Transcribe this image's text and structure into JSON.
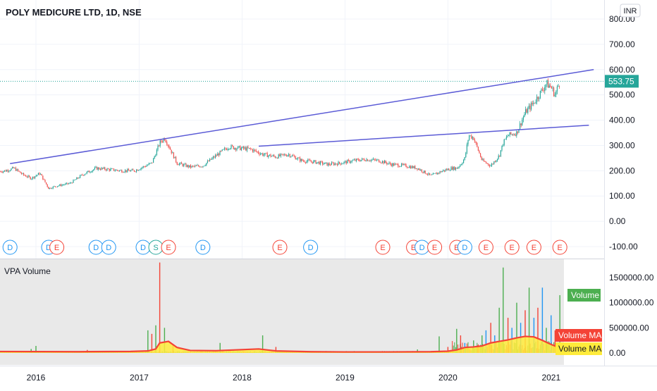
{
  "header": {
    "symbol_title": "POLY MEDICURE LTD, 1D, NSE",
    "currency_button": "INR"
  },
  "indicator": {
    "title": "VPA Volume",
    "volume_tag": "Volume",
    "volume_ma_tag": "Volume MA",
    "volume_ma_tag2": "Volume MA"
  },
  "price_tag": "553.75",
  "colors": {
    "up": "#26a69a",
    "down": "#ef5350",
    "trendline": "#5b5bd6",
    "last_price_line": "#26a69a",
    "volume_green": "#4caf50",
    "volume_red": "#f44336",
    "volume_blue": "#2196f3",
    "volume_ma": "#f44336",
    "volume_ma_fill": "#ffeb3b",
    "dividend": "#2196f3",
    "earnings": "#f44336",
    "split": "#26a69a",
    "pane_bg": "#e9e9e9"
  },
  "chart_data": [
    {
      "type": "line",
      "name": "price",
      "title": "POLY MEDICURE LTD, 1D, NSE",
      "y_axis_ticks": [
        "800.00",
        "700.00",
        "600.00",
        "500.00",
        "400.00",
        "300.00",
        "200.00",
        "100.00",
        "0.00",
        "-100.00"
      ],
      "y_range": [
        -100,
        800
      ],
      "x_axis_ticks": [
        "2016",
        "2017",
        "2018",
        "2019",
        "2020",
        "2021"
      ],
      "last_price": 553.75,
      "series": [
        {
          "x": [
            "2015-07-01",
            "2015-09-15",
            "2015-10-15",
            "2015-11-15",
            "2015-12-15",
            "2016-01-15",
            "2016-02-15",
            "2016-03-15",
            "2016-05-01",
            "2016-06-15",
            "2016-08-01",
            "2016-09-15",
            "2016-11-01",
            "2016-12-15",
            "2017-01-15",
            "2017-02-15",
            "2017-03-01",
            "2017-03-15",
            "2017-04-01",
            "2017-04-15",
            "2017-05-15",
            "2017-07-01",
            "2017-08-15",
            "2017-10-01",
            "2017-11-15",
            "2017-12-15",
            "2018-02-01",
            "2018-03-15",
            "2018-05-01",
            "2018-06-15",
            "2018-08-01",
            "2018-09-15",
            "2018-11-01",
            "2018-12-15",
            "2019-02-01",
            "2019-03-15",
            "2019-05-01",
            "2019-06-15",
            "2019-08-01",
            "2019-09-15",
            "2019-11-01",
            "2019-12-15",
            "2020-01-15",
            "2020-02-01",
            "2020-02-15",
            "2020-03-01",
            "2020-03-15",
            "2020-04-01",
            "2020-05-01",
            "2020-06-01",
            "2020-07-01",
            "2020-07-15",
            "2020-08-01",
            "2020-09-01",
            "2020-10-01",
            "2020-11-01",
            "2020-12-01",
            "2020-12-15",
            "2021-01-01",
            "2021-01-15",
            "2021-02-01"
          ],
          "y": [
            190,
            200,
            210,
            185,
            170,
            190,
            130,
            140,
            150,
            185,
            210,
            205,
            200,
            200,
            215,
            230,
            270,
            310,
            330,
            300,
            230,
            215,
            220,
            260,
            295,
            290,
            285,
            265,
            255,
            265,
            240,
            235,
            225,
            230,
            240,
            245,
            240,
            225,
            220,
            210,
            180,
            200,
            210,
            210,
            225,
            250,
            340,
            330,
            240,
            220,
            260,
            310,
            340,
            350,
            430,
            470,
            520,
            545,
            530,
            500,
            553.75
          ]
        }
      ],
      "trendlines": [
        {
          "from": {
            "x": "2015-10-01",
            "y": 228
          },
          "to": {
            "x": "2021-06-01",
            "y": 600
          }
        },
        {
          "from": {
            "x": "2018-03-01",
            "y": 297
          },
          "to": {
            "x": "2021-05-15",
            "y": 380
          }
        }
      ],
      "events": [
        {
          "label": "D",
          "kind": "dividend",
          "x": "2015-10-01"
        },
        {
          "label": "D",
          "kind": "dividend",
          "x": "2016-02-15"
        },
        {
          "label": "E",
          "kind": "earnings",
          "x": "2016-03-15"
        },
        {
          "label": "D",
          "kind": "dividend",
          "x": "2016-08-01"
        },
        {
          "label": "D",
          "kind": "dividend",
          "x": "2016-09-15"
        },
        {
          "label": "D",
          "kind": "dividend",
          "x": "2017-01-15"
        },
        {
          "label": "S",
          "kind": "split",
          "x": "2017-03-01"
        },
        {
          "label": "E",
          "kind": "earnings",
          "x": "2017-04-15"
        },
        {
          "label": "D",
          "kind": "dividend",
          "x": "2017-08-15"
        },
        {
          "label": "E",
          "kind": "earnings",
          "x": "2018-05-15"
        },
        {
          "label": "D",
          "kind": "dividend",
          "x": "2018-09-01"
        },
        {
          "label": "E",
          "kind": "earnings",
          "x": "2019-05-15"
        },
        {
          "label": "E",
          "kind": "earnings",
          "x": "2019-09-01"
        },
        {
          "label": "D",
          "kind": "dividend",
          "x": "2019-10-01"
        },
        {
          "label": "E",
          "kind": "earnings",
          "x": "2019-11-15"
        },
        {
          "label": "E",
          "kind": "earnings",
          "x": "2020-02-01"
        },
        {
          "label": "D",
          "kind": "dividend",
          "x": "2020-03-01"
        },
        {
          "label": "E",
          "kind": "earnings",
          "x": "2020-05-15"
        },
        {
          "label": "E",
          "kind": "earnings",
          "x": "2020-08-15"
        },
        {
          "label": "E",
          "kind": "earnings",
          "x": "2020-11-01"
        },
        {
          "label": "E",
          "kind": "earnings",
          "x": "2021-02-01"
        }
      ]
    },
    {
      "type": "bar",
      "name": "VPA Volume",
      "title": "VPA Volume",
      "y_axis_ticks": [
        "1500000.00",
        "1000000.00",
        "500000.00",
        "0.00"
      ],
      "y_range": [
        -80000,
        1800000
      ],
      "spikes": [
        {
          "x": "2015-12-15",
          "value": 80000,
          "color": "green"
        },
        {
          "x": "2016-01-01",
          "value": 140000,
          "color": "green"
        },
        {
          "x": "2016-07-01",
          "value": 60000,
          "color": "red"
        },
        {
          "x": "2017-02-01",
          "value": 450000,
          "color": "green"
        },
        {
          "x": "2017-02-15",
          "value": 380000,
          "color": "red"
        },
        {
          "x": "2017-03-01",
          "value": 550000,
          "color": "green"
        },
        {
          "x": "2017-03-15",
          "value": 1800000,
          "color": "red"
        },
        {
          "x": "2017-04-01",
          "value": 500000,
          "color": "green"
        },
        {
          "x": "2017-05-01",
          "value": 150000,
          "color": "red"
        },
        {
          "x": "2017-10-15",
          "value": 200000,
          "color": "green"
        },
        {
          "x": "2018-03-15",
          "value": 350000,
          "color": "green"
        },
        {
          "x": "2018-05-01",
          "value": 120000,
          "color": "red"
        },
        {
          "x": "2019-09-15",
          "value": 70000,
          "color": "green"
        },
        {
          "x": "2019-12-01",
          "value": 330000,
          "color": "green"
        },
        {
          "x": "2020-01-01",
          "value": 120000,
          "color": "red"
        },
        {
          "x": "2020-02-01",
          "value": 480000,
          "color": "green"
        },
        {
          "x": "2020-02-15",
          "value": 350000,
          "color": "red"
        },
        {
          "x": "2020-03-01",
          "value": 200000,
          "color": "blue"
        },
        {
          "x": "2020-04-01",
          "value": 250000,
          "color": "green"
        },
        {
          "x": "2020-04-15",
          "value": 150000,
          "color": "red"
        },
        {
          "x": "2020-05-01",
          "value": 350000,
          "color": "green"
        },
        {
          "x": "2020-05-15",
          "value": 450000,
          "color": "blue"
        },
        {
          "x": "2020-06-01",
          "value": 600000,
          "color": "red"
        },
        {
          "x": "2020-06-15",
          "value": 350000,
          "color": "blue"
        },
        {
          "x": "2020-07-01",
          "value": 900000,
          "color": "green"
        },
        {
          "x": "2020-07-15",
          "value": 1700000,
          "color": "green"
        },
        {
          "x": "2020-08-01",
          "value": 700000,
          "color": "red"
        },
        {
          "x": "2020-08-15",
          "value": 500000,
          "color": "blue"
        },
        {
          "x": "2020-09-01",
          "value": 1000000,
          "color": "green"
        },
        {
          "x": "2020-09-15",
          "value": 600000,
          "color": "blue"
        },
        {
          "x": "2020-10-01",
          "value": 850000,
          "color": "red"
        },
        {
          "x": "2020-10-15",
          "value": 1300000,
          "color": "green"
        },
        {
          "x": "2020-11-01",
          "value": 700000,
          "color": "blue"
        },
        {
          "x": "2020-11-15",
          "value": 900000,
          "color": "red"
        },
        {
          "x": "2020-12-01",
          "value": 1300000,
          "color": "blue"
        },
        {
          "x": "2020-12-15",
          "value": 500000,
          "color": "green"
        },
        {
          "x": "2021-01-01",
          "value": 750000,
          "color": "blue"
        },
        {
          "x": "2021-01-15",
          "value": 450000,
          "color": "red"
        },
        {
          "x": "2021-02-01",
          "value": 1150000,
          "color": "green"
        }
      ],
      "volume_ma": {
        "x": [
          "2015-07-01",
          "2016-06-01",
          "2016-12-01",
          "2017-02-01",
          "2017-03-01",
          "2017-03-15",
          "2017-04-15",
          "2017-05-15",
          "2017-07-01",
          "2017-10-01",
          "2018-03-01",
          "2018-05-01",
          "2018-09-01",
          "2019-01-01",
          "2019-06-01",
          "2019-11-01",
          "2020-01-01",
          "2020-02-01",
          "2020-03-01",
          "2020-04-01",
          "2020-05-01",
          "2020-06-01",
          "2020-07-01",
          "2020-08-01",
          "2020-09-01",
          "2020-10-01",
          "2020-11-01",
          "2020-12-01",
          "2021-01-01",
          "2021-02-01"
        ],
        "y": [
          30000,
          25000,
          30000,
          40000,
          80000,
          200000,
          230000,
          110000,
          50000,
          45000,
          80000,
          40000,
          25000,
          20000,
          20000,
          25000,
          35000,
          60000,
          110000,
          120000,
          140000,
          200000,
          230000,
          260000,
          300000,
          330000,
          320000,
          250000,
          170000,
          100000
        ]
      }
    }
  ]
}
